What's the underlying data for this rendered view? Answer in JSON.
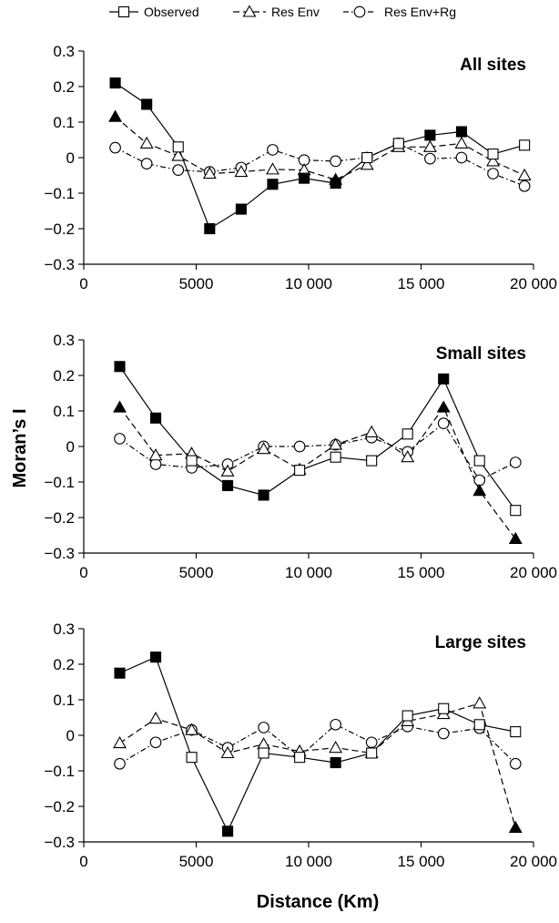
{
  "legend": [
    {
      "label": "Observed",
      "marker": "square-icon",
      "dash": "solid"
    },
    {
      "label": "Res Env",
      "marker": "triangle-icon",
      "dash": "dashed"
    },
    {
      "label": "Res Env+Rg",
      "marker": "circle-icon",
      "dash": "dashdot"
    }
  ],
  "ylabel": "Moran’s I",
  "xlabel": "Distance (Km)",
  "colors": {
    "line": "#000000",
    "significant_fill": "#000000",
    "nonsignificant_fill": "#ffffff"
  },
  "chart_data": [
    {
      "type": "line",
      "title": "All sites",
      "xlim": [
        0,
        20000
      ],
      "ylim": [
        -0.3,
        0.3
      ],
      "xticks": [
        0,
        5000,
        10000,
        15000,
        20000
      ],
      "xtick_labels": [
        "0",
        "5000",
        "10 000",
        "15 000",
        "20 000"
      ],
      "yticks": [
        0.3,
        0.2,
        0.1,
        0,
        -0.1,
        -0.2,
        -0.3
      ],
      "ytick_labels": [
        "0.3",
        "0.2",
        "0.1",
        "0",
        "−0.1",
        "−0.2",
        "−0.3"
      ],
      "grid": false,
      "series": [
        {
          "name": "Observed",
          "x": [
            1400,
            2800,
            4200,
            5600,
            7000,
            8400,
            9800,
            11200,
            12600,
            14000,
            15400,
            16800,
            18200,
            19600
          ],
          "values": [
            0.21,
            0.15,
            0.03,
            -0.2,
            -0.145,
            -0.075,
            -0.058,
            -0.072,
            0.0,
            0.04,
            0.063,
            0.073,
            0.01,
            0.035
          ],
          "filled": [
            true,
            true,
            false,
            true,
            true,
            true,
            true,
            true,
            false,
            false,
            true,
            true,
            false,
            false
          ]
        },
        {
          "name": "Res Env",
          "x": [
            1400,
            2800,
            4200,
            5600,
            7000,
            8400,
            9800,
            11200,
            12600,
            14000,
            15400,
            16800,
            18200,
            19600
          ],
          "values": [
            0.115,
            0.04,
            0.005,
            -0.045,
            -0.04,
            -0.033,
            -0.035,
            -0.062,
            -0.02,
            0.03,
            0.03,
            0.04,
            -0.01,
            -0.05
          ],
          "filled": [
            true,
            false,
            false,
            false,
            false,
            false,
            false,
            true,
            false,
            false,
            false,
            false,
            false,
            false
          ]
        },
        {
          "name": "Res Env+Rg",
          "x": [
            1400,
            2800,
            4200,
            5600,
            7000,
            8400,
            9800,
            11200,
            12600,
            14000,
            15400,
            16800,
            18200,
            19600
          ],
          "values": [
            0.028,
            -0.017,
            -0.035,
            -0.04,
            -0.028,
            0.022,
            -0.007,
            -0.01,
            0.0,
            0.04,
            -0.003,
            0.0,
            -0.045,
            -0.08
          ],
          "filled": [
            false,
            false,
            false,
            false,
            false,
            false,
            false,
            false,
            false,
            false,
            false,
            false,
            false,
            false
          ]
        }
      ]
    },
    {
      "type": "line",
      "title": "Small sites",
      "xlim": [
        0,
        20000
      ],
      "ylim": [
        -0.3,
        0.3
      ],
      "xticks": [
        0,
        5000,
        10000,
        15000,
        20000
      ],
      "xtick_labels": [
        "0",
        "5000",
        "10 000",
        "15 000",
        "20 000"
      ],
      "yticks": [
        0.3,
        0.2,
        0.1,
        0,
        -0.1,
        -0.2,
        -0.3
      ],
      "ytick_labels": [
        "0.3",
        "0.2",
        "0.1",
        "0",
        "−0.1",
        "−0.2",
        "−0.3"
      ],
      "grid": false,
      "series": [
        {
          "name": "Observed",
          "x": [
            1600,
            3200,
            4800,
            6400,
            8000,
            9600,
            11200,
            12800,
            14400,
            16000,
            17600,
            19200
          ],
          "values": [
            0.225,
            0.08,
            -0.04,
            -0.11,
            -0.137,
            -0.067,
            -0.03,
            -0.04,
            0.035,
            0.19,
            -0.04,
            -0.18
          ],
          "filled": [
            true,
            true,
            false,
            true,
            true,
            false,
            false,
            false,
            false,
            true,
            false,
            false
          ]
        },
        {
          "name": "Res Env",
          "x": [
            1600,
            3200,
            4800,
            6400,
            8000,
            9600,
            11200,
            12800,
            14400,
            16000,
            17600,
            19200
          ],
          "values": [
            0.11,
            -0.025,
            -0.02,
            -0.07,
            -0.007,
            -0.065,
            0.005,
            0.04,
            -0.03,
            0.11,
            -0.125,
            -0.26
          ],
          "filled": [
            true,
            false,
            false,
            false,
            false,
            false,
            false,
            false,
            false,
            true,
            true,
            true
          ]
        },
        {
          "name": "Res Env+Rg",
          "x": [
            1600,
            3200,
            4800,
            6400,
            8000,
            9600,
            11200,
            12800,
            14400,
            16000,
            17600,
            19200
          ],
          "values": [
            0.022,
            -0.05,
            -0.06,
            -0.05,
            0.0,
            0.0,
            0.005,
            0.025,
            -0.015,
            0.065,
            -0.095,
            -0.045
          ],
          "filled": [
            false,
            false,
            false,
            false,
            false,
            false,
            false,
            false,
            false,
            false,
            false,
            false
          ]
        }
      ]
    },
    {
      "type": "line",
      "title": "Large sites",
      "xlim": [
        0,
        20000
      ],
      "ylim": [
        -0.3,
        0.3
      ],
      "xticks": [
        0,
        5000,
        10000,
        15000,
        20000
      ],
      "xtick_labels": [
        "0",
        "5000",
        "10 000",
        "15 000",
        "20 000"
      ],
      "yticks": [
        0.3,
        0.2,
        0.1,
        0,
        -0.1,
        -0.2,
        -0.3
      ],
      "ytick_labels": [
        "0.3",
        "0.2",
        "0.1",
        "0",
        "−0.1",
        "−0.2",
        "−0.3"
      ],
      "grid": false,
      "series": [
        {
          "name": "Observed",
          "x": [
            1600,
            3200,
            4800,
            6400,
            8000,
            9600,
            11200,
            12800,
            14400,
            16000,
            17600,
            19200
          ],
          "values": [
            0.175,
            0.22,
            -0.062,
            -0.27,
            -0.05,
            -0.062,
            -0.077,
            -0.05,
            0.055,
            0.075,
            0.03,
            0.01
          ],
          "filled": [
            true,
            true,
            false,
            true,
            false,
            false,
            true,
            false,
            false,
            false,
            false,
            false
          ]
        },
        {
          "name": "Res Env",
          "x": [
            1600,
            3200,
            4800,
            6400,
            8000,
            9600,
            11200,
            12800,
            14400,
            16000,
            17600,
            19200
          ],
          "values": [
            -0.022,
            0.047,
            0.015,
            -0.05,
            -0.025,
            -0.045,
            -0.035,
            -0.05,
            0.04,
            0.06,
            0.09,
            -0.26
          ],
          "filled": [
            false,
            false,
            false,
            false,
            false,
            false,
            false,
            false,
            false,
            false,
            false,
            true
          ]
        },
        {
          "name": "Res Env+Rg",
          "x": [
            1600,
            3200,
            4800,
            6400,
            8000,
            9600,
            11200,
            12800,
            14400,
            16000,
            17600,
            19200
          ],
          "values": [
            -0.08,
            -0.02,
            0.015,
            -0.035,
            0.022,
            -0.06,
            0.03,
            -0.02,
            0.025,
            0.005,
            0.02,
            -0.08
          ],
          "filled": [
            false,
            false,
            false,
            false,
            false,
            false,
            false,
            false,
            false,
            false,
            false,
            false
          ]
        }
      ]
    }
  ]
}
